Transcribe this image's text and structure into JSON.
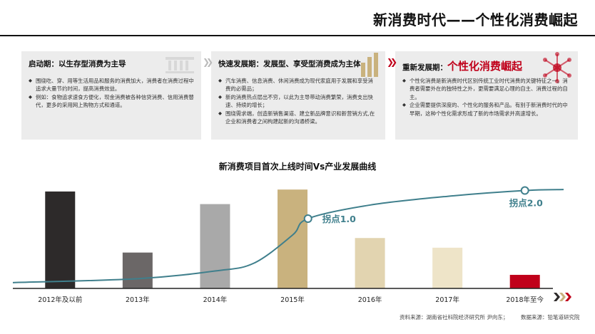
{
  "title": "新消费时代——个性化消费崛起",
  "phases": [
    {
      "head": "启动期：以生存型消费为主导",
      "head_highlight": "",
      "items": [
        "围绕吃、穿、用等生活用品和服务的消费加大，消费者在消费过程中追求大量节约时间，提高消费效益。",
        "例如：食物追求速食方便化，现金消费被各种信贷消费、信用消费替代，更多的采用网上购物方式和通道。"
      ]
    },
    {
      "head": "快速发展期：发展型、享受型消费成为主体",
      "head_highlight": "",
      "items": [
        "汽车消费、信息消费、休闲消费成为现代家庭用于发展和享受消费的必需品；",
        "新的消费热点层出不穷，以此为主导带动消费繁荣，消费支出快速、持续的增长；",
        "围绕需求端，创造新销售渠道、建立新品牌意识和新营销方式,在企业和消费者之间构建起新的沟通桥梁。"
      ]
    },
    {
      "head": "重新发展期：",
      "head_highlight": "个性化消费崛起",
      "items": [
        "个性化消费是新消费时代区别传统工业时代消费的关键特征之一。消费者需要外在的独特性之外，更需要满足心理的自主、消费过程的自主。",
        "企业需要提供深度的、个性化的服务和产品。有别于新消费时代的中早期，这种个性化需求形成了新的市场需求并高速增长。"
      ]
    }
  ],
  "chart_data": {
    "type": "bar",
    "title": "新消费项目首次上线时间Vs产业发展曲线",
    "categories": [
      "2012年及以前",
      "2013年",
      "2014年",
      "2015年",
      "2016年",
      "2017年",
      "2018年至今"
    ],
    "values": [
      100,
      37,
      87,
      102,
      52,
      42,
      14
    ],
    "bar_colors": [
      "#2d2a2a",
      "#6b6767",
      "#a9a9a9",
      "#c9b27e",
      "#e2d4b0",
      "#eee4c8",
      "#c0001a"
    ],
    "ylim": [
      0,
      108
    ],
    "curve": {
      "color": "#3f7f8c",
      "points": [
        {
          "x": 0.0,
          "y": 6
        },
        {
          "x": 1.0,
          "y": 10
        },
        {
          "x": 2.0,
          "y": 18
        },
        {
          "x": 2.5,
          "y": 26
        },
        {
          "x": 3.0,
          "y": 55
        },
        {
          "x": 3.2,
          "y": 72
        },
        {
          "x": 4.0,
          "y": 86
        },
        {
          "x": 5.0,
          "y": 95
        },
        {
          "x": 6.0,
          "y": 101
        },
        {
          "x": 6.5,
          "y": 102
        }
      ],
      "markers": [
        {
          "x": 3.2,
          "y": 72,
          "label": "拐点1.0"
        },
        {
          "x": 6.0,
          "y": 101,
          "label": "拐点2.0"
        }
      ]
    }
  },
  "sources": {
    "left": "资料来源：湖南省社科院经济研究所 尹向东；",
    "right": "数据来源：铅笔道研究院"
  },
  "colors": {
    "accent": "#c0001a",
    "panel_bg": "#ececec",
    "axis": "#222222",
    "gold_deco": "#c9b27e"
  }
}
